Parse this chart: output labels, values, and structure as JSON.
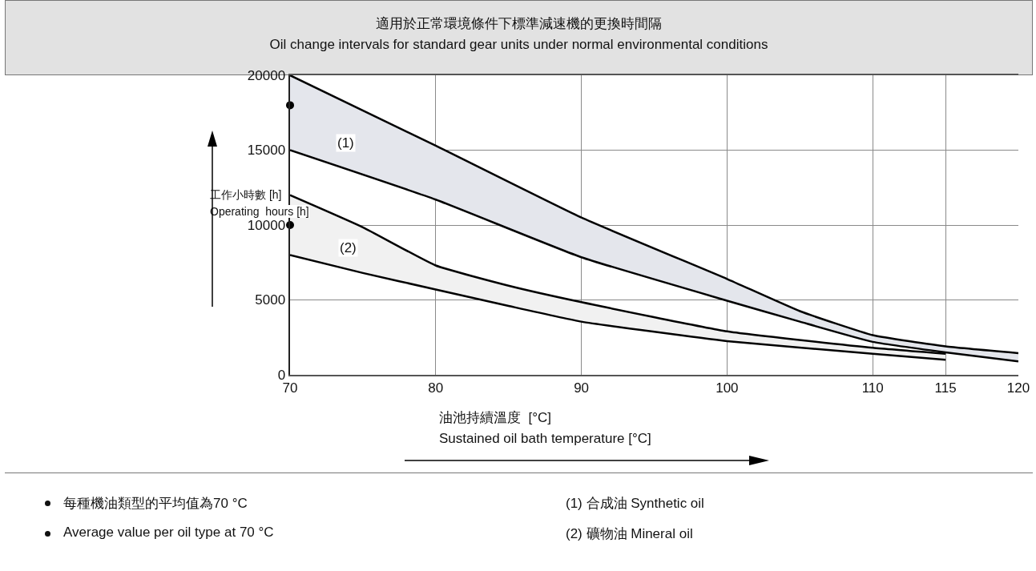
{
  "chart_data": {
    "type": "line",
    "title": "適用於正常環境條件下標準減速機的更換時間隔",
    "subtitle": "Oil change intervals for standard gear units under normal environmental conditions",
    "xlabel": "油池持續溫度  [°C]\nSustained oil bath temperature [°C]",
    "ylabel": "工作小時數 [h]\nOperating  hours [h]",
    "series": [
      {
        "color": "#000000",
        "x": [
          70,
          80,
          90,
          100,
          105,
          110,
          115,
          120
        ],
        "values": [
          15000,
          11700,
          7850,
          4950,
          3550,
          2200,
          1500,
          900
        ]
      },
      {
        "type": "area",
        "color": "#e4e6ec",
        "x": [
          70,
          80,
          90,
          100,
          105,
          110,
          115,
          120
        ],
        "values": [
          20000,
          15300,
          10500,
          6400,
          4250,
          2650,
          1900,
          1450
        ]
      },
      {
        "color": "#000000",
        "x": [
          70,
          75,
          80,
          85,
          90,
          100,
          110,
          115
        ],
        "values": [
          8000,
          6800,
          5700,
          4600,
          3550,
          2250,
          1400,
          1000
        ]
      },
      {
        "type": "area",
        "color": "#f1f1f1",
        "x": [
          70,
          75,
          80,
          85,
          90,
          100,
          110,
          115
        ],
        "values": [
          12000,
          9850,
          7300,
          5950,
          4850,
          2900,
          1800,
          1400
        ]
      },
      {
        "type": "scatter",
        "color": "#000000",
        "marker": "circle",
        "x": [
          70,
          70
        ],
        "values": [
          18000,
          10000
        ]
      }
    ],
    "xlim": [
      70,
      120
    ],
    "xticks": [
      70,
      80,
      90,
      100,
      110,
      115,
      120
    ],
    "ylim": [
      0,
      20000
    ],
    "yticks": [
      0,
      5000,
      10000,
      15000,
      20000
    ],
    "grid": true,
    "annotations": [
      {
        "text": "(1)",
        "x": 73.8,
        "y": 15500
      },
      {
        "text": "(2)",
        "x": 74,
        "y": 8500
      },
      "每種機油類型的平均值為70 °C",
      "Average value per oil type at 70 °C",
      "(1)  合成油    Synthetic oil",
      "(2)  礦物油    Mineral oil"
    ]
  }
}
